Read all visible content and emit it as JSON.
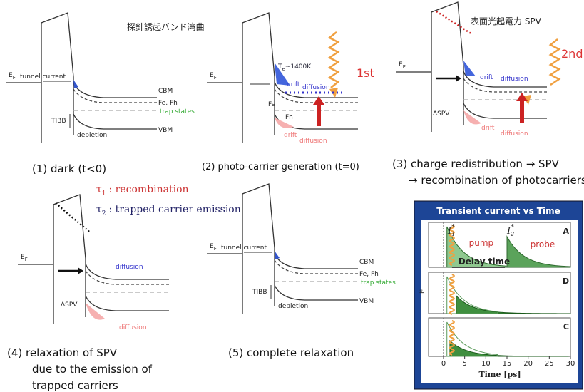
{
  "header": {
    "left_title": "探針誘起バンド湾曲",
    "right_title": "表面光起電力 SPV"
  },
  "legend": {
    "tau": "τ",
    "tau1_sub": "1",
    "tau1_text": ": recombination",
    "tau2_sub": "2",
    "tau2_text": ": trapped carrier emission"
  },
  "panel1": {
    "ef": "E",
    "ef_sub": "F",
    "tunnel": "tunnel current",
    "cbm": "CBM",
    "fefh": "Fe, Fh",
    "trap": "trap states",
    "tibb": "TIBB",
    "depletion": "depletion",
    "vbm": "VBM",
    "caption": "(1) dark (t<0)"
  },
  "panel2": {
    "ef": "E",
    "ef_sub": "F",
    "te": "T",
    "te_sub": "e",
    "te_rest": "~1400K",
    "photon": "1st",
    "drift_up": "drift",
    "diffusion_up": "diffusion",
    "fe": "Fe",
    "fh": "Fh",
    "drift_down": "drift",
    "diffusion_down": "diffusion",
    "caption": "(2) photo-carrier generation (t=0)"
  },
  "panel3": {
    "ef": "E",
    "ef_sub": "F",
    "photon": "2nd",
    "drift_up": "drift",
    "diffusion_up": "diffusion",
    "dspv": "ΔSPV",
    "drift_down": "drift",
    "diffusion_down": "diffusion",
    "caption_line1": "(3) charge redistribution  →  SPV",
    "caption_line2": "→ recombination of photocarriers"
  },
  "panel4": {
    "ef": "E",
    "ef_sub": "F",
    "diffusion_up": "diffusion",
    "dspv": "ΔSPV",
    "diffusion_down": "diffusion",
    "caption_line1": "(4) relaxation of SPV",
    "caption_line2": "due to the emission of",
    "caption_line3": "trapped carriers"
  },
  "panel5": {
    "ef": "E",
    "ef_sub": "F",
    "tunnel": "tunnel current",
    "cbm": "CBM",
    "fefh": "Fe, Fh",
    "trap": "trap states",
    "tibb": "TIBB",
    "depletion": "depletion",
    "vbm": "VBM",
    "caption": "(5) complete relaxation"
  },
  "inset": {
    "title": "Transient current vs Time",
    "i": "I",
    "i1_sub": "1",
    "i2_sub": "2",
    "star": "*",
    "pump": "pump",
    "probe": "probe",
    "delay": "Delay time",
    "rows": [
      "A",
      "D",
      "C"
    ],
    "y_label": "I*",
    "x_ticks": [
      0,
      5,
      10,
      15,
      20,
      25,
      30
    ],
    "x_label": "Time [ps]"
  }
}
